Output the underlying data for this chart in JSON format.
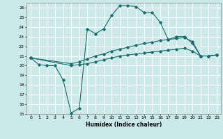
{
  "xlabel": "Humidex (Indice chaleur)",
  "ylabel": "",
  "xlim": [
    -0.5,
    23.5
  ],
  "ylim": [
    15,
    26.5
  ],
  "yticks": [
    15,
    16,
    17,
    18,
    19,
    20,
    21,
    22,
    23,
    24,
    25,
    26
  ],
  "xticks": [
    0,
    1,
    2,
    3,
    4,
    5,
    6,
    7,
    8,
    9,
    10,
    11,
    12,
    13,
    14,
    15,
    16,
    17,
    18,
    19,
    20,
    21,
    22,
    23
  ],
  "background_color": "#cce9e9",
  "grid_color": "#ffffff",
  "line_color": "#1a6b6b",
  "line1_x": [
    0,
    1,
    2,
    3,
    4,
    5,
    6,
    7,
    8,
    9,
    10,
    11,
    12,
    13,
    14,
    15,
    16,
    17,
    18,
    19,
    20,
    21,
    22,
    23
  ],
  "line1_y": [
    20.8,
    20.1,
    20.0,
    20.0,
    18.5,
    15.1,
    15.6,
    23.8,
    23.3,
    23.8,
    25.2,
    26.2,
    26.2,
    26.1,
    25.5,
    25.5,
    24.5,
    22.7,
    23.0,
    23.0,
    22.3,
    21.0,
    21.0,
    21.1
  ],
  "line2_x": [
    0,
    5,
    6,
    7,
    8,
    9,
    10,
    11,
    12,
    13,
    14,
    15,
    16,
    17,
    18,
    19,
    20,
    21,
    22,
    23
  ],
  "line2_y": [
    20.8,
    20.2,
    20.4,
    20.7,
    21.0,
    21.2,
    21.5,
    21.7,
    21.9,
    22.1,
    22.3,
    22.4,
    22.6,
    22.7,
    22.8,
    22.9,
    22.5,
    21.0,
    21.0,
    21.1
  ],
  "line3_x": [
    0,
    5,
    6,
    7,
    8,
    9,
    10,
    11,
    12,
    13,
    14,
    15,
    16,
    17,
    18,
    19,
    20,
    21,
    22,
    23
  ],
  "line3_y": [
    20.8,
    20.0,
    20.1,
    20.2,
    20.4,
    20.6,
    20.8,
    21.0,
    21.1,
    21.2,
    21.3,
    21.4,
    21.5,
    21.6,
    21.7,
    21.8,
    21.5,
    21.0,
    21.0,
    21.1
  ]
}
